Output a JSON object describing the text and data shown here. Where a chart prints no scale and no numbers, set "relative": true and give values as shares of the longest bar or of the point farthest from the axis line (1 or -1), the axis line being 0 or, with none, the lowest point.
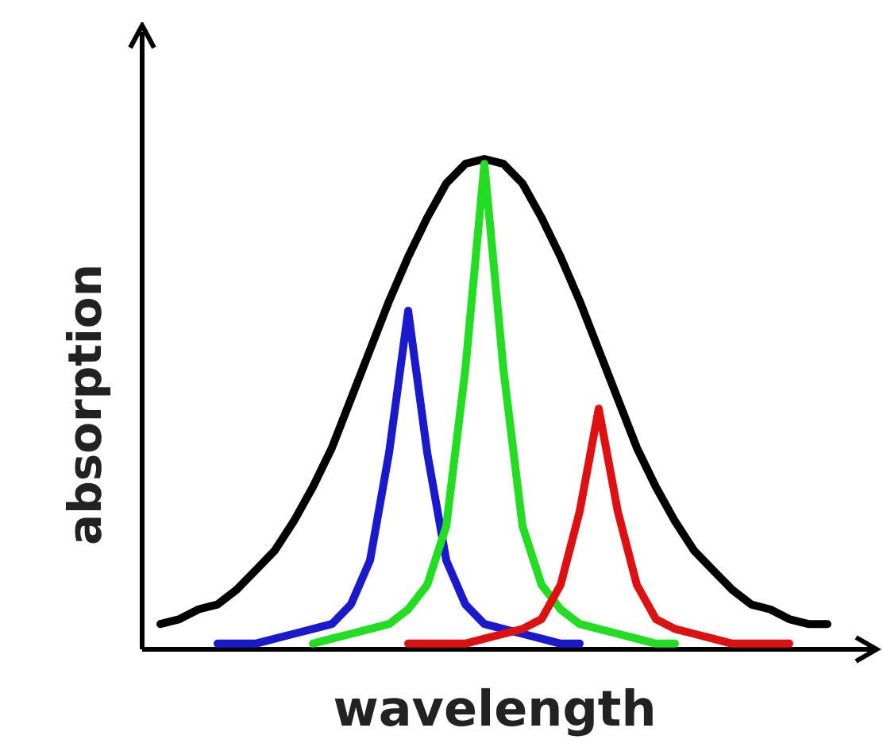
{
  "chart_data": {
    "type": "line",
    "relative": true,
    "xlabel": "wavelength",
    "ylabel": "absorption",
    "line_style": "solid",
    "categories": [
      null,
      null,
      null,
      null,
      null,
      null,
      null,
      null,
      null,
      null,
      null,
      null,
      null,
      null,
      null,
      null,
      null,
      null,
      null,
      null,
      null,
      null,
      null,
      null,
      null,
      null,
      null,
      null,
      null,
      null,
      null,
      null,
      null,
      null,
      null,
      null
    ],
    "series": [
      {
        "color": "#000000",
        "values": [
          0.05,
          0.06,
          0.08,
          0.09,
          0.12,
          0.16,
          0.2,
          0.26,
          0.33,
          0.41,
          0.51,
          0.61,
          0.71,
          0.8,
          0.88,
          0.95,
          0.99,
          1.0,
          0.99,
          0.95,
          0.88,
          0.8,
          0.71,
          0.61,
          0.51,
          0.41,
          0.33,
          0.26,
          0.2,
          0.16,
          0.12,
          0.09,
          0.08,
          0.06,
          0.05,
          0.05
        ]
      },
      {
        "color": "#1a1acc",
        "values": [
          null,
          null,
          null,
          0.01,
          0.01,
          0.01,
          0.02,
          0.03,
          0.04,
          0.05,
          0.09,
          0.18,
          0.4,
          0.69,
          0.4,
          0.18,
          0.09,
          0.05,
          0.04,
          0.03,
          0.02,
          0.01,
          0.01,
          null,
          null,
          null,
          null,
          null,
          null,
          null,
          null,
          null,
          null,
          null,
          null,
          null
        ]
      },
      {
        "color": "#22dd22",
        "values": [
          null,
          null,
          null,
          null,
          null,
          null,
          null,
          null,
          0.01,
          0.02,
          0.03,
          0.04,
          0.05,
          0.08,
          0.13,
          0.25,
          0.57,
          0.99,
          0.57,
          0.25,
          0.13,
          0.08,
          0.05,
          0.04,
          0.03,
          0.02,
          0.01,
          0.01,
          null,
          null,
          null,
          null,
          null,
          null,
          null,
          null
        ]
      },
      {
        "color": "#dd1111",
        "values": [
          null,
          null,
          null,
          null,
          null,
          null,
          null,
          null,
          null,
          null,
          null,
          null,
          null,
          0.01,
          0.01,
          0.01,
          0.01,
          0.02,
          0.03,
          0.04,
          0.06,
          0.13,
          0.28,
          0.49,
          0.28,
          0.13,
          0.06,
          0.04,
          0.03,
          0.02,
          0.01,
          0.01,
          0.01,
          0.01,
          null,
          null
        ]
      }
    ]
  }
}
